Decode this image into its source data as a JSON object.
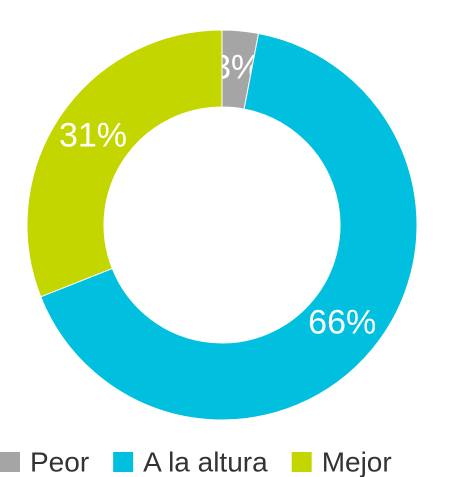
{
  "chart_data": {
    "type": "donut",
    "categories": [
      "Peor",
      "A la altura",
      "Mejor"
    ],
    "values": [
      3,
      66,
      31
    ],
    "value_labels": [
      "3%",
      "66%",
      "31%"
    ],
    "colors": [
      "#a5a5a5",
      "#00bfdf",
      "#c4d600"
    ],
    "legend": "bottom"
  }
}
